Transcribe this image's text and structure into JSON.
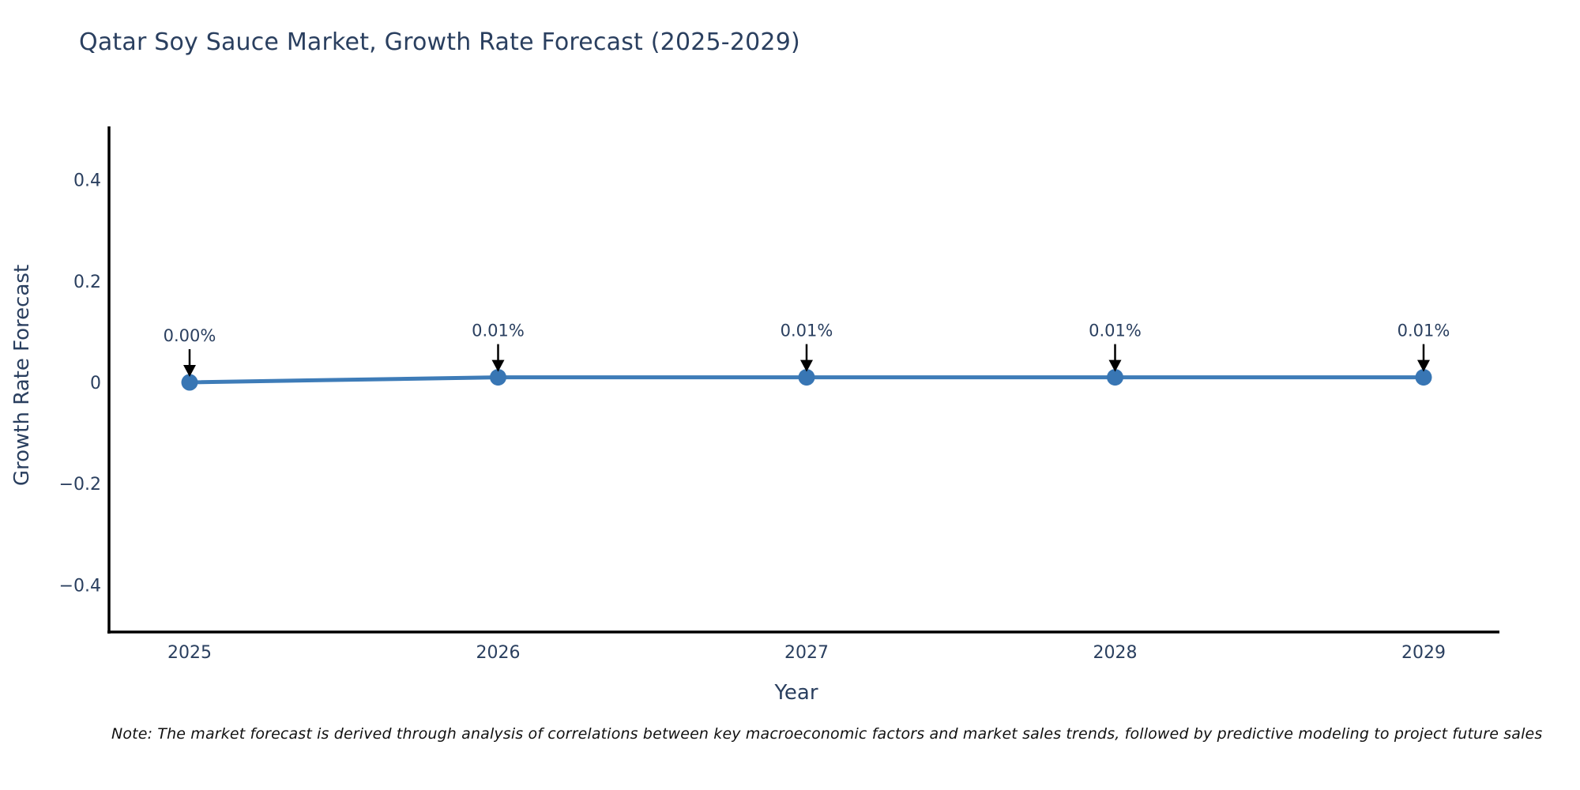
{
  "title": "Qatar Soy Sauce Market, Growth Rate Forecast (2025-2029)",
  "x_axis": {
    "title": "Year",
    "tick_labels": [
      "2025",
      "2026",
      "2027",
      "2028",
      "2029"
    ]
  },
  "y_axis": {
    "title": "Growth Rate Forecast",
    "tick_labels": [
      "0.4",
      "0.2",
      "0",
      "−0.2",
      "−0.4"
    ],
    "tick_values": [
      0.4,
      0.2,
      0,
      -0.2,
      -0.4
    ]
  },
  "note": "Note: The market forecast is derived through analysis of correlations between key macroeconomic factors and market sales trends, followed by predictive modeling to project future sales",
  "chart_data": {
    "type": "line",
    "x": [
      2025,
      2026,
      2027,
      2028,
      2029
    ],
    "series": [
      {
        "name": "Growth Rate Forecast",
        "values": [
          0.0,
          0.01,
          0.01,
          0.01,
          0.01
        ]
      }
    ],
    "point_labels": [
      "0.00%",
      "0.01%",
      "0.01%",
      "0.01%",
      "0.01%"
    ],
    "title": "Qatar Soy Sauce Market, Growth Rate Forecast (2025-2029)",
    "xlabel": "Year",
    "ylabel": "Growth Rate Forecast",
    "ylim": [
      -0.5,
      0.5
    ],
    "grid": false,
    "legend_position": "none",
    "annotation_arrows": true
  },
  "colors": {
    "line": "#3e7cb8",
    "marker": "#3876b4",
    "arrow": "#000000",
    "axis": "#000000",
    "text": "#2a3f5f",
    "note_text": "#111111",
    "background": "#ffffff"
  }
}
